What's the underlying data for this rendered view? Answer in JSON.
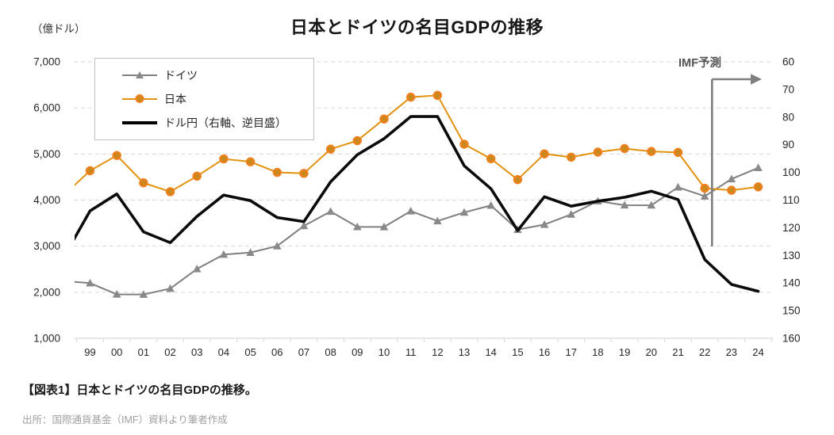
{
  "header": {
    "unit_label": "（億ドル）",
    "title": "日本とドイツの名目GDPの推移"
  },
  "legend": {
    "items": [
      {
        "label": "ドイツ"
      },
      {
        "label": "日本"
      },
      {
        "label": "ドル円（右軸、逆目盛）"
      }
    ]
  },
  "annotation": {
    "imf_forecast_label": "IMF予測",
    "divider_after_category": "22"
  },
  "captions": {
    "figure": "【図表1】日本とドイツの名目GDPの推移。",
    "source": "出所：国際通貨基金（IMF）資料より筆者作成"
  },
  "colors": {
    "japan_line": "#E2920E",
    "japan_marker_fill": "#C9891D",
    "japan_marker_ring": "#F07F1E",
    "germany_line": "#7F7F7F",
    "germany_marker": "#898989",
    "usdjpy_line": "#0A0A0A",
    "gridline": "#D6D6D6",
    "axis": "#D9D9D9",
    "annotation": "#7F7F7F",
    "tick_text": "#262626"
  },
  "chart_data": {
    "type": "line",
    "title": "日本とドイツの名目GDPの推移",
    "categories": [
      "99",
      "00",
      "01",
      "02",
      "03",
      "04",
      "05",
      "06",
      "07",
      "08",
      "09",
      "10",
      "11",
      "12",
      "13",
      "14",
      "15",
      "16",
      "17",
      "18",
      "19",
      "20",
      "21",
      "22",
      "23",
      "24"
    ],
    "series": [
      {
        "name": "ドイツ",
        "axis": "left",
        "marker": "triangle",
        "color": "#7F7F7F",
        "leadin_1998": 2243,
        "values": [
          2199,
          1955,
          1951,
          2080,
          2506,
          2819,
          2861,
          3002,
          3440,
          3752,
          3418,
          3417,
          3761,
          3546,
          3733,
          3884,
          3358,
          3469,
          3690,
          3977,
          3889,
          3887,
          4278,
          4082,
          4457,
          4700
        ]
      },
      {
        "name": "日本",
        "axis": "left",
        "marker": "circle",
        "color": "#E2920E",
        "leadin_1998": 4098,
        "values": [
          4636,
          4968,
          4374,
          4182,
          4519,
          4893,
          4831,
          4601,
          4579,
          5106,
          5289,
          5759,
          6233,
          6272,
          5212,
          4897,
          4444,
          5003,
          4931,
          5041,
          5118,
          5055,
          5034,
          4256,
          4213,
          4286
        ]
      },
      {
        "name": "ドル円（右軸、逆目盛）",
        "axis": "right_inverted",
        "marker": "none",
        "color": "#0A0A0A",
        "leadin_1998": 130.9,
        "values": [
          113.9,
          107.8,
          121.5,
          125.4,
          115.9,
          108.2,
          110.2,
          116.3,
          117.8,
          103.4,
          93.6,
          87.8,
          79.8,
          79.8,
          97.6,
          105.9,
          121.0,
          108.8,
          112.2,
          110.4,
          109.0,
          106.8,
          109.8,
          131.5,
          140.5,
          143.0
        ]
      }
    ],
    "y_left": {
      "min": 1000,
      "max": 7000,
      "tick_labels": [
        "7,000",
        "6,000",
        "5,000",
        "4,000",
        "3,000",
        "2,000",
        "1,000"
      ],
      "unit_label": "（億ドル）"
    },
    "y_right": {
      "min": 60,
      "max": 160,
      "inverted": true,
      "tick_labels": [
        "60",
        "70",
        "80",
        "90",
        "100",
        "110",
        "120",
        "130",
        "140",
        "150",
        "160"
      ]
    },
    "gridlines": "horizontal-dashed",
    "legend_position": "inside-top-left",
    "forecast_annotation": "IMF予測 (vertical divider between 22 and 23, arrow pointing right)"
  }
}
